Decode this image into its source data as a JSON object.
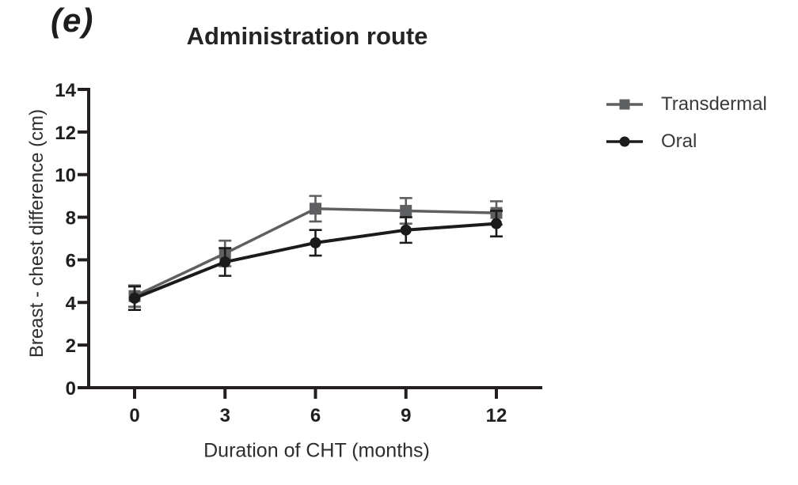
{
  "panel": {
    "label": "(e)"
  },
  "chart_data": {
    "type": "line",
    "title": "Administration route",
    "xlabel": "Duration of CHT (months)",
    "ylabel": "Breast - chest difference (cm)",
    "x": [
      0,
      3,
      6,
      9,
      12
    ],
    "xticks": [
      0,
      3,
      6,
      9,
      12
    ],
    "yticks": [
      0,
      2,
      4,
      6,
      8,
      10,
      12,
      14
    ],
    "xlim": [
      -1.6,
      13.5
    ],
    "ylim": [
      0,
      14
    ],
    "grid": false,
    "error_bars": true,
    "legend_position": "right-outside",
    "series": [
      {
        "name": "Transdermal",
        "marker": "square",
        "color": "#5e5f61",
        "values": [
          4.3,
          6.3,
          8.4,
          8.3,
          8.2
        ],
        "errors": [
          0.5,
          0.6,
          0.6,
          0.6,
          0.55
        ]
      },
      {
        "name": "Oral",
        "marker": "circle",
        "color": "#1b1b1b",
        "values": [
          4.2,
          5.9,
          6.8,
          7.4,
          7.7
        ],
        "errors": [
          0.55,
          0.65,
          0.6,
          0.6,
          0.6
        ]
      }
    ]
  },
  "colors": {
    "axis": "#231f20",
    "tick_text": "#1f1f1f",
    "background": "#ffffff"
  }
}
